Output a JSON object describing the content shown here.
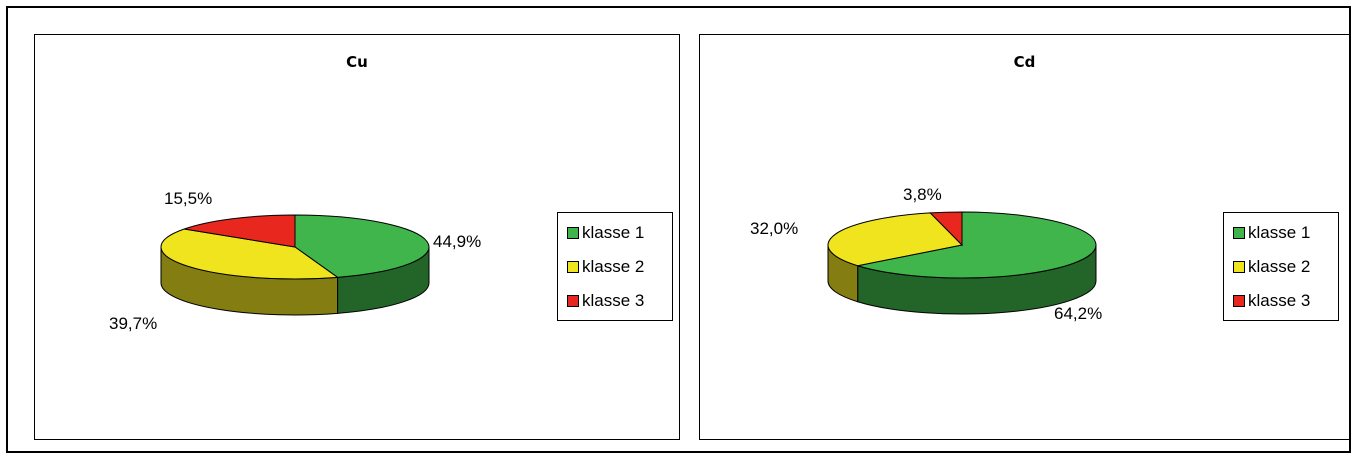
{
  "chart_data": [
    {
      "type": "pie",
      "title": "Cu",
      "categories": [
        "klasse 1",
        "klasse 2",
        "klasse 3"
      ],
      "values": [
        44.9,
        39.7,
        15.5
      ],
      "labels": [
        "44,9%",
        "39,7%",
        "15,5%"
      ],
      "colors": [
        "#3fb54b",
        "#f0e41e",
        "#e8281e"
      ],
      "legend_position": "right"
    },
    {
      "type": "pie",
      "title": "Cd",
      "categories": [
        "klasse 1",
        "klasse 2",
        "klasse 3"
      ],
      "values": [
        64.2,
        32.0,
        3.8
      ],
      "labels": [
        "64,2%",
        "32,0%",
        "3,8%"
      ],
      "colors": [
        "#3fb54b",
        "#f0e41e",
        "#e8281e"
      ],
      "legend_position": "right"
    }
  ]
}
